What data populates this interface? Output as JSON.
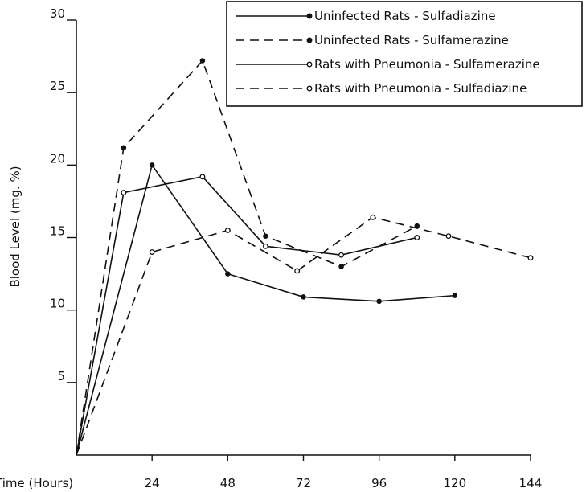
{
  "chart_data": {
    "type": "line",
    "title": "",
    "xlabel": "Time (Hours)",
    "ylabel": "Blood Level (mg. %)",
    "xlim": [
      0,
      144
    ],
    "ylim": [
      0,
      30
    ],
    "x_ticks": [
      24,
      48,
      72,
      96,
      120,
      144
    ],
    "y_ticks": [
      5,
      10,
      15,
      20,
      25,
      30
    ],
    "grid": false,
    "legend_position": "top-right",
    "series": [
      {
        "name": "Uninfected Rats - Sulfadiazine",
        "line": "solid",
        "marker": "filled",
        "x": [
          0,
          24,
          48,
          72,
          96,
          120
        ],
        "y": [
          0,
          20.0,
          12.5,
          10.9,
          10.6,
          11.0
        ]
      },
      {
        "name": "Uninfected Rats - Sulfamerazine",
        "line": "dashed",
        "marker": "filled",
        "x": [
          0,
          15,
          40,
          60,
          84,
          108
        ],
        "y": [
          0,
          21.2,
          27.2,
          15.1,
          13.0,
          15.8
        ]
      },
      {
        "name": "Rats with Pneumonia - Sulfamerazine",
        "line": "solid",
        "marker": "open",
        "x": [
          0,
          15,
          40,
          60,
          84,
          108
        ],
        "y": [
          0,
          18.1,
          19.2,
          14.4,
          13.8,
          15.0
        ]
      },
      {
        "name": "Rats with Pneumonia - Sulfadiazine",
        "line": "dashed",
        "marker": "open",
        "x": [
          0,
          24,
          48,
          70,
          94,
          118,
          144
        ],
        "y": [
          0,
          14.0,
          15.5,
          12.7,
          16.4,
          15.1,
          13.6
        ]
      }
    ]
  }
}
